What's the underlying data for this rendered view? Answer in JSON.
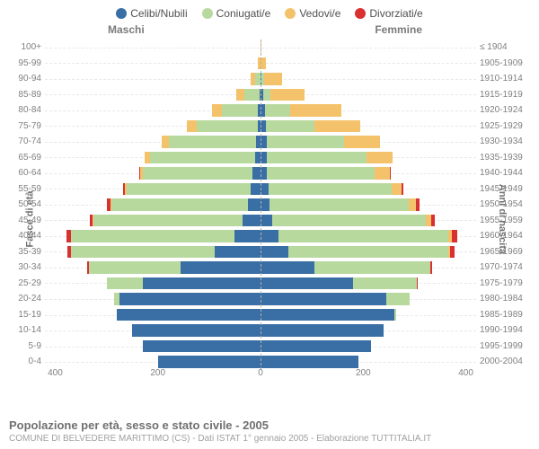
{
  "legend": {
    "items": [
      {
        "label": "Celibi/Nubili",
        "color": "#3a6fa5"
      },
      {
        "label": "Coniugati/e",
        "color": "#b8d99e"
      },
      {
        "label": "Vedovi/e",
        "color": "#f4c26b"
      },
      {
        "label": "Divorziati/e",
        "color": "#d93030"
      }
    ]
  },
  "genders": {
    "left": "Maschi",
    "right": "Femmine"
  },
  "axis_y_left_title": "Fasce di età",
  "axis_y_right_title": "Anni di nascita",
  "footer": {
    "title": "Popolazione per età, sesso e stato civile - 2005",
    "sub": "COMUNE DI BELVEDERE MARITTIMO (CS) - Dati ISTAT 1° gennaio 2005 - Elaborazione TUTTITALIA.IT"
  },
  "chart": {
    "type": "population-pyramid",
    "xlim": 420,
    "xticks": [
      400,
      200,
      0,
      200,
      400
    ],
    "background_color": "#ffffff",
    "grid_color": "#e8e8e8",
    "label_fontsize": 10,
    "label_color": "#808080",
    "rows": [
      {
        "age": "100+",
        "birth": "≤ 1904",
        "m": {
          "c": 0,
          "co": 0,
          "v": 0,
          "d": 0
        },
        "f": {
          "c": 0,
          "co": 0,
          "v": 2,
          "d": 0
        }
      },
      {
        "age": "95-99",
        "birth": "1905-1909",
        "m": {
          "c": 0,
          "co": 0,
          "v": 5,
          "d": 0
        },
        "f": {
          "c": 0,
          "co": 0,
          "v": 10,
          "d": 0
        }
      },
      {
        "age": "90-94",
        "birth": "1910-1914",
        "m": {
          "c": 0,
          "co": 10,
          "v": 10,
          "d": 0
        },
        "f": {
          "c": 2,
          "co": 5,
          "v": 35,
          "d": 0
        }
      },
      {
        "age": "85-89",
        "birth": "1915-1919",
        "m": {
          "c": 2,
          "co": 30,
          "v": 15,
          "d": 0
        },
        "f": {
          "c": 5,
          "co": 15,
          "v": 65,
          "d": 0
        }
      },
      {
        "age": "80-84",
        "birth": "1920-1924",
        "m": {
          "c": 5,
          "co": 70,
          "v": 20,
          "d": 0
        },
        "f": {
          "c": 8,
          "co": 50,
          "v": 100,
          "d": 0
        }
      },
      {
        "age": "75-79",
        "birth": "1925-1929",
        "m": {
          "c": 5,
          "co": 120,
          "v": 18,
          "d": 0
        },
        "f": {
          "c": 10,
          "co": 95,
          "v": 90,
          "d": 0
        }
      },
      {
        "age": "70-74",
        "birth": "1930-1934",
        "m": {
          "c": 8,
          "co": 170,
          "v": 15,
          "d": 0
        },
        "f": {
          "c": 12,
          "co": 150,
          "v": 70,
          "d": 0
        }
      },
      {
        "age": "65-69",
        "birth": "1935-1939",
        "m": {
          "c": 10,
          "co": 205,
          "v": 10,
          "d": 0
        },
        "f": {
          "c": 12,
          "co": 195,
          "v": 50,
          "d": 0
        }
      },
      {
        "age": "60-64",
        "birth": "1940-1944",
        "m": {
          "c": 15,
          "co": 215,
          "v": 5,
          "d": 2
        },
        "f": {
          "c": 12,
          "co": 210,
          "v": 30,
          "d": 2
        }
      },
      {
        "age": "55-59",
        "birth": "1945-1949",
        "m": {
          "c": 20,
          "co": 240,
          "v": 5,
          "d": 3
        },
        "f": {
          "c": 15,
          "co": 240,
          "v": 20,
          "d": 3
        }
      },
      {
        "age": "50-54",
        "birth": "1950-1954",
        "m": {
          "c": 25,
          "co": 265,
          "v": 3,
          "d": 6
        },
        "f": {
          "c": 18,
          "co": 270,
          "v": 15,
          "d": 6
        }
      },
      {
        "age": "45-49",
        "birth": "1955-1959",
        "m": {
          "c": 35,
          "co": 290,
          "v": 2,
          "d": 6
        },
        "f": {
          "c": 22,
          "co": 300,
          "v": 10,
          "d": 8
        }
      },
      {
        "age": "40-44",
        "birth": "1960-1964",
        "m": {
          "c": 50,
          "co": 320,
          "v": 0,
          "d": 8
        },
        "f": {
          "c": 35,
          "co": 330,
          "v": 8,
          "d": 10
        }
      },
      {
        "age": "35-39",
        "birth": "1965-1969",
        "m": {
          "c": 90,
          "co": 280,
          "v": 0,
          "d": 6
        },
        "f": {
          "c": 55,
          "co": 310,
          "v": 5,
          "d": 8
        }
      },
      {
        "age": "30-34",
        "birth": "1970-1974",
        "m": {
          "c": 155,
          "co": 180,
          "v": 0,
          "d": 3
        },
        "f": {
          "c": 105,
          "co": 225,
          "v": 0,
          "d": 5
        }
      },
      {
        "age": "25-29",
        "birth": "1975-1979",
        "m": {
          "c": 230,
          "co": 70,
          "v": 0,
          "d": 0
        },
        "f": {
          "c": 180,
          "co": 125,
          "v": 0,
          "d": 2
        }
      },
      {
        "age": "20-24",
        "birth": "1980-1984",
        "m": {
          "c": 275,
          "co": 10,
          "v": 0,
          "d": 0
        },
        "f": {
          "c": 245,
          "co": 45,
          "v": 0,
          "d": 0
        }
      },
      {
        "age": "15-19",
        "birth": "1985-1989",
        "m": {
          "c": 280,
          "co": 0,
          "v": 0,
          "d": 0
        },
        "f": {
          "c": 260,
          "co": 5,
          "v": 0,
          "d": 0
        }
      },
      {
        "age": "10-14",
        "birth": "1990-1994",
        "m": {
          "c": 250,
          "co": 0,
          "v": 0,
          "d": 0
        },
        "f": {
          "c": 240,
          "co": 0,
          "v": 0,
          "d": 0
        }
      },
      {
        "age": "5-9",
        "birth": "1995-1999",
        "m": {
          "c": 230,
          "co": 0,
          "v": 0,
          "d": 0
        },
        "f": {
          "c": 215,
          "co": 0,
          "v": 0,
          "d": 0
        }
      },
      {
        "age": "0-4",
        "birth": "2000-2004",
        "m": {
          "c": 200,
          "co": 0,
          "v": 0,
          "d": 0
        },
        "f": {
          "c": 190,
          "co": 0,
          "v": 0,
          "d": 0
        }
      }
    ]
  }
}
